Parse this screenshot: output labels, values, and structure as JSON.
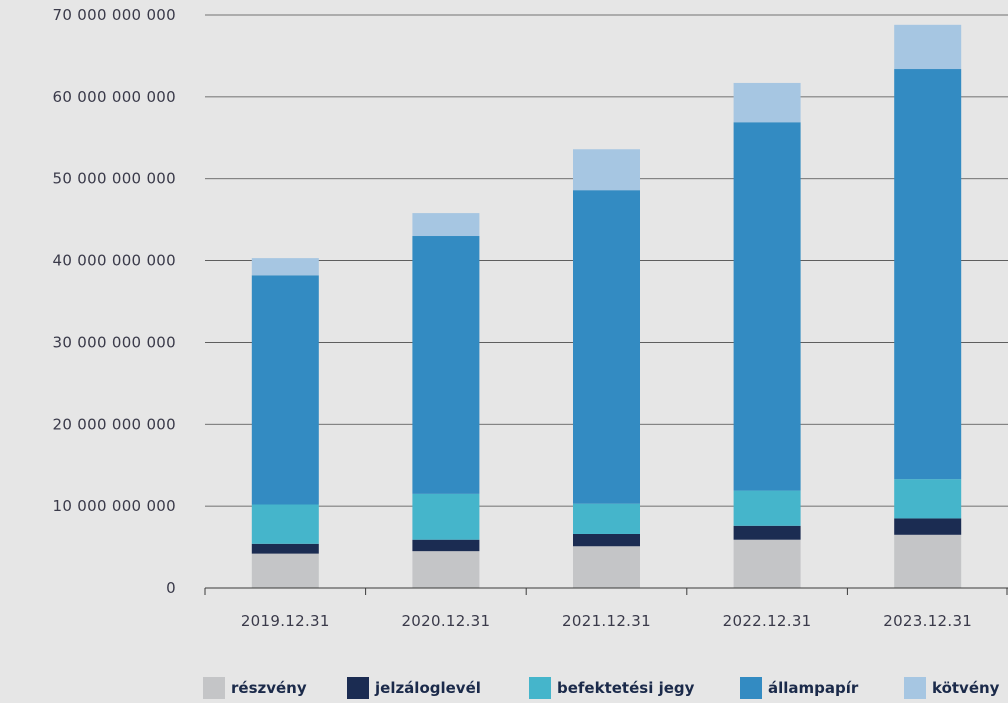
{
  "chart_data": {
    "type": "bar",
    "stacked": true,
    "categories": [
      "2019.12.31",
      "2020.12.31",
      "2021.12.31",
      "2022.12.31",
      "2023.12.31"
    ],
    "ylim": [
      0,
      70000000000
    ],
    "yticks": [
      {
        "value": 0,
        "label": "0"
      },
      {
        "value": 10000000000,
        "label": "10 000 000 000"
      },
      {
        "value": 20000000000,
        "label": "20 000 000 000"
      },
      {
        "value": 30000000000,
        "label": "30 000 000 000"
      },
      {
        "value": 40000000000,
        "label": "40 000 000 000"
      },
      {
        "value": 50000000000,
        "label": "50 000 000 000"
      },
      {
        "value": 60000000000,
        "label": "60 000 000 000"
      },
      {
        "value": 70000000000,
        "label": "70 000 000 000"
      }
    ],
    "grid": true,
    "legend_position": "bottom",
    "series": [
      {
        "name": "részvény",
        "color": "#c4c5c7",
        "values": [
          4200000000,
          4500000000,
          5100000000,
          5900000000,
          6500000000
        ]
      },
      {
        "name": "jelzáloglevél",
        "color": "#1b2c52",
        "values": [
          1200000000,
          1400000000,
          1500000000,
          1700000000,
          2000000000
        ]
      },
      {
        "name": "befektetési jegy",
        "color": "#45b5cb",
        "values": [
          4800000000,
          5600000000,
          3700000000,
          4300000000,
          4800000000
        ]
      },
      {
        "name": "állampapír",
        "color": "#338bc2",
        "values": [
          28000000000,
          31500000000,
          38300000000,
          45000000000,
          50100000000
        ]
      },
      {
        "name": "kötvény",
        "color": "#a6c6e2",
        "values": [
          2100000000,
          2800000000,
          5000000000,
          4800000000,
          5400000000
        ]
      }
    ]
  }
}
